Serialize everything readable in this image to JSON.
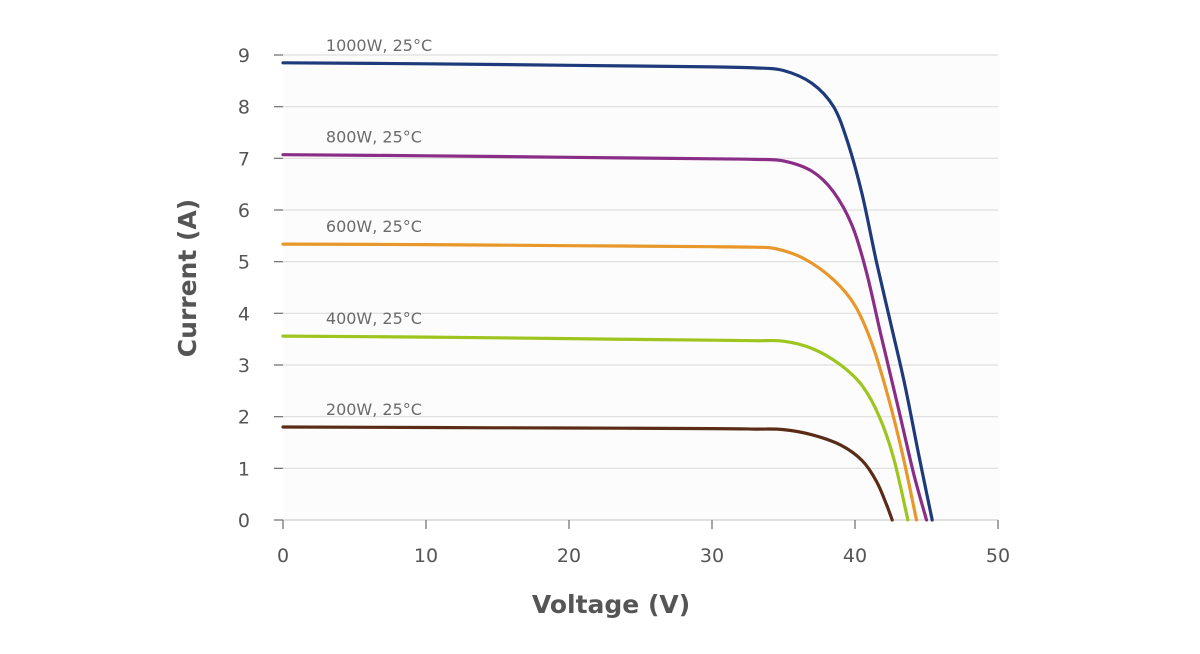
{
  "chart_data": {
    "type": "line",
    "xlabel": "Voltage (V)",
    "ylabel": "Current (A)",
    "xlim": [
      0,
      50
    ],
    "ylim": [
      0,
      9
    ],
    "x_ticks": [
      "0",
      "10",
      "20",
      "30",
      "40",
      "50"
    ],
    "y_ticks": [
      "0",
      "1",
      "2",
      "3",
      "4",
      "5",
      "6",
      "7",
      "8",
      "9"
    ],
    "grid": "horizontal",
    "series": [
      {
        "name": "1000W, 25°C",
        "color": "#1f3a7a",
        "points": [
          [
            0,
            8.85
          ],
          [
            10,
            8.83
          ],
          [
            20,
            8.8
          ],
          [
            30,
            8.77
          ],
          [
            33,
            8.75
          ],
          [
            35,
            8.7
          ],
          [
            37,
            8.45
          ],
          [
            38.5,
            8.0
          ],
          [
            39.5,
            7.3
          ],
          [
            40.5,
            6.3
          ],
          [
            41.5,
            5.0
          ],
          [
            42.5,
            3.8
          ],
          [
            43.5,
            2.6
          ],
          [
            44.5,
            1.2
          ],
          [
            45.4,
            0
          ]
        ]
      },
      {
        "name": "800W, 25°C",
        "color": "#8a2d86",
        "points": [
          [
            0,
            7.07
          ],
          [
            10,
            7.05
          ],
          [
            20,
            7.02
          ],
          [
            30,
            6.99
          ],
          [
            33,
            6.98
          ],
          [
            35,
            6.95
          ],
          [
            37,
            6.75
          ],
          [
            38.5,
            6.35
          ],
          [
            39.8,
            5.7
          ],
          [
            40.8,
            4.8
          ],
          [
            41.8,
            3.6
          ],
          [
            43,
            2.2
          ],
          [
            44.1,
            0.9
          ],
          [
            45,
            0
          ]
        ]
      },
      {
        "name": "600W, 25°C",
        "color": "#e8972a",
        "points": [
          [
            0,
            5.34
          ],
          [
            10,
            5.33
          ],
          [
            20,
            5.31
          ],
          [
            30,
            5.29
          ],
          [
            33,
            5.28
          ],
          [
            34.5,
            5.25
          ],
          [
            36.5,
            5.05
          ],
          [
            38.5,
            4.65
          ],
          [
            40,
            4.15
          ],
          [
            41.2,
            3.4
          ],
          [
            42.3,
            2.4
          ],
          [
            43.3,
            1.3
          ],
          [
            44.3,
            0
          ]
        ]
      },
      {
        "name": "400W, 25°C",
        "color": "#9ec41e",
        "points": [
          [
            0,
            3.56
          ],
          [
            10,
            3.54
          ],
          [
            20,
            3.51
          ],
          [
            30,
            3.48
          ],
          [
            33,
            3.47
          ],
          [
            35,
            3.46
          ],
          [
            37,
            3.32
          ],
          [
            39,
            3.0
          ],
          [
            40.5,
            2.6
          ],
          [
            41.7,
            2.0
          ],
          [
            42.7,
            1.2
          ],
          [
            43.7,
            0
          ]
        ]
      },
      {
        "name": "200W, 25°C",
        "color": "#5a2c17",
        "points": [
          [
            0,
            1.8
          ],
          [
            10,
            1.79
          ],
          [
            20,
            1.78
          ],
          [
            30,
            1.77
          ],
          [
            33,
            1.76
          ],
          [
            35,
            1.75
          ],
          [
            37,
            1.65
          ],
          [
            39,
            1.45
          ],
          [
            40.5,
            1.15
          ],
          [
            41.5,
            0.75
          ],
          [
            42.2,
            0.3
          ],
          [
            42.6,
            0
          ]
        ]
      }
    ]
  }
}
